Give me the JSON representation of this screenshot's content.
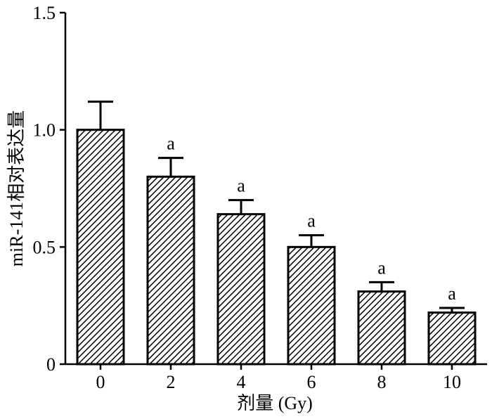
{
  "chart_data": {
    "type": "bar",
    "title": "",
    "xlabel": "剂量 (Gy)",
    "ylabel": "miR-141相对表达量",
    "categories": [
      "0",
      "2",
      "4",
      "6",
      "8",
      "10"
    ],
    "values": [
      1.0,
      0.8,
      0.64,
      0.5,
      0.31,
      0.22
    ],
    "errors": [
      0.12,
      0.08,
      0.06,
      0.05,
      0.04,
      0.02
    ],
    "annotations": [
      "",
      "a",
      "a",
      "a",
      "a",
      "a"
    ],
    "ylim": [
      0,
      1.5
    ],
    "yticks": [
      "0",
      "0.5",
      "1.0",
      "1.5"
    ],
    "grid": false,
    "bar_fill": "diagonal-hatch",
    "colors": {
      "bar_stroke": "#000000",
      "hatch": "#000000",
      "background": "#ffffff"
    }
  }
}
